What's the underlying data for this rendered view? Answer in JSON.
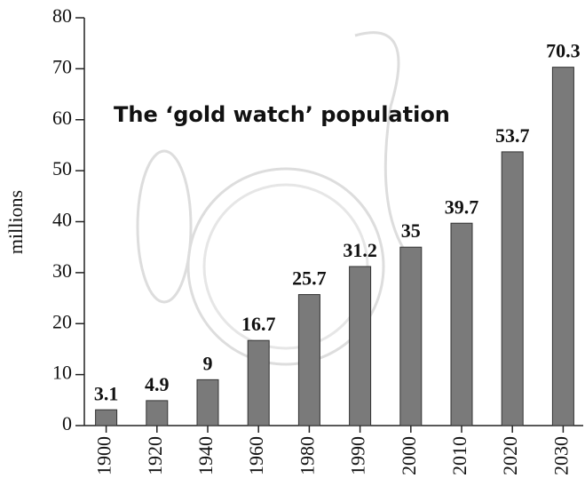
{
  "chart_data": {
    "type": "bar",
    "title": "The ‘gold watch’ population",
    "y_label": "millions",
    "categories": [
      "1900",
      "1920",
      "1940",
      "1960",
      "1980",
      "1990",
      "2000",
      "2010",
      "2020",
      "2030"
    ],
    "values": [
      3.1,
      4.9,
      9,
      16.7,
      25.7,
      31.2,
      35,
      39.7,
      53.7,
      70.3
    ],
    "color": "#7a7a7a",
    "ylim": [
      0,
      80
    ],
    "yticks": [
      0,
      10,
      20,
      30,
      40,
      50,
      60,
      70,
      80
    ],
    "grid": false
  }
}
